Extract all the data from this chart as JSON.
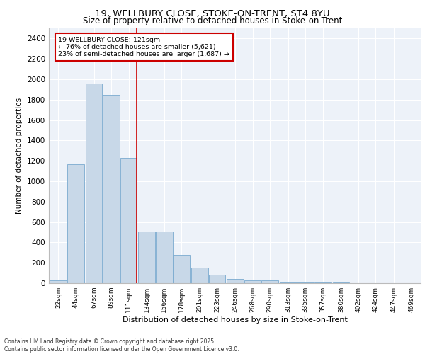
{
  "title_line1": "19, WELLBURY CLOSE, STOKE-ON-TRENT, ST4 8YU",
  "title_line2": "Size of property relative to detached houses in Stoke-on-Trent",
  "xlabel": "Distribution of detached houses by size in Stoke-on-Trent",
  "ylabel": "Number of detached properties",
  "annotation_title": "19 WELLBURY CLOSE: 121sqm",
  "annotation_line2": "← 76% of detached houses are smaller (5,621)",
  "annotation_line3": "23% of semi-detached houses are larger (1,687) →",
  "footer_line1": "Contains HM Land Registry data © Crown copyright and database right 2025.",
  "footer_line2": "Contains public sector information licensed under the Open Government Licence v3.0.",
  "bar_color": "#c8d8e8",
  "bar_edge_color": "#7aaacf",
  "highlight_x": 121,
  "vline_color": "#cc0000",
  "annotation_box_color": "#cc0000",
  "background_color": "#edf2f9",
  "grid_color": "#ffffff",
  "categories": [
    "22sqm",
    "44sqm",
    "67sqm",
    "89sqm",
    "111sqm",
    "134sqm",
    "156sqm",
    "178sqm",
    "201sqm",
    "223sqm",
    "246sqm",
    "268sqm",
    "290sqm",
    "313sqm",
    "335sqm",
    "357sqm",
    "380sqm",
    "402sqm",
    "424sqm",
    "447sqm",
    "469sqm"
  ],
  "bin_centers": [
    22,
    44,
    67,
    89,
    111,
    134,
    156,
    178,
    201,
    223,
    246,
    268,
    290,
    313,
    335,
    357,
    380,
    402,
    424,
    447,
    469
  ],
  "bin_width": 22,
  "values": [
    25,
    1165,
    1960,
    1850,
    1230,
    510,
    510,
    275,
    155,
    85,
    40,
    30,
    25,
    10,
    5,
    5,
    5,
    3,
    2,
    2,
    2
  ],
  "ylim": [
    0,
    2500
  ],
  "yticks": [
    0,
    200,
    400,
    600,
    800,
    1000,
    1200,
    1400,
    1600,
    1800,
    2000,
    2200,
    2400
  ],
  "xlim_left": 10,
  "xlim_right": 481
}
